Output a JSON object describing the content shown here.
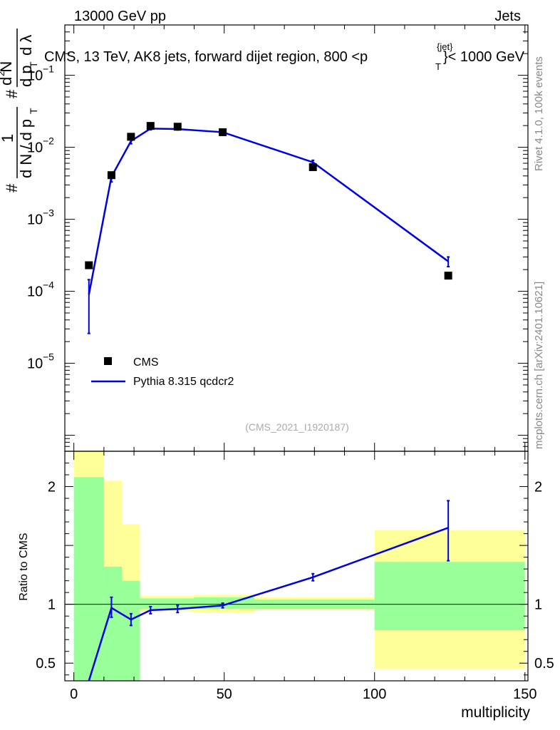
{
  "header": {
    "left": "13000 GeV pp",
    "right": "Jets"
  },
  "side_labels": {
    "rivet": "Rivet 4.1.0,  100k events",
    "mcplots": "mcplots.cern.ch [arXiv:2401.10621]"
  },
  "colors": {
    "mc": "#0000e6",
    "band_inner": "#99ff99",
    "band_outer": "#ffff99",
    "data": "#000000"
  },
  "chart_data": [
    {
      "type": "scatter",
      "panel": "main",
      "title": "CMS, 13 TeV, AK8 jets, forward dijet region, 800 <p_T^{jet}< 1000 GeV",
      "title_parts": {
        "prefix": "CMS, 13 TeV, AK8 jets, forward dijet region, 800 <p",
        "sup": "{jet}",
        "sub": "T",
        "suffix": "}< 1000 GeV"
      },
      "ylabel": "1/(dN/dp_T) d²N/(dp_T dλ)",
      "ylabel_parts": {
        "one": "1",
        "hash": "#",
        "denom": "d N / d p",
        "denom_sub": "T",
        "num": "d N",
        "num_sup": "2",
        "frac_den": "d p",
        "frac_den_sub": "T",
        "lambda": "d λ"
      },
      "yscale": "log",
      "xlim": [
        -3,
        151
      ],
      "ylim": [
        6e-07,
        0.5
      ],
      "yticks": [
        {
          "value": 0.1,
          "base": "10",
          "exp": "−1"
        },
        {
          "value": 0.01,
          "base": "10",
          "exp": "−2"
        },
        {
          "value": 0.001,
          "base": "10",
          "exp": "−3"
        },
        {
          "value": 0.0001,
          "base": "10",
          "exp": "−4"
        },
        {
          "value": 1e-05,
          "base": "10",
          "exp": "−5"
        }
      ],
      "legend": [
        {
          "label": "CMS",
          "marker": "square"
        },
        {
          "label": "Pythia 8.315 qcdcr2",
          "marker": "line"
        }
      ],
      "watermark": "(CMS_2021_I1920187)",
      "series": [
        {
          "name": "CMS",
          "x": [
            5,
            12.5,
            19,
            25.5,
            34.5,
            49.5,
            79.5,
            124.5
          ],
          "y": [
            0.00023,
            0.0041,
            0.014,
            0.0198,
            0.0193,
            0.0162,
            0.0053,
            0.000165
          ]
        },
        {
          "name": "Pythia 8.315 qcdcr2",
          "x": [
            5,
            12.5,
            19,
            25.5,
            34.5,
            49.5,
            79.5,
            124.5
          ],
          "y": [
            9e-05,
            0.0039,
            0.0122,
            0.0182,
            0.0179,
            0.0162,
            0.0062,
            0.00026
          ],
          "err_low": [
            2.6e-05,
            0.0033,
            0.0112,
            0.0175,
            0.0174,
            0.0157,
            0.0059,
            0.00022
          ],
          "err_high": [
            0.000145,
            0.0045,
            0.0132,
            0.0189,
            0.0184,
            0.0167,
            0.0066,
            0.0003
          ]
        }
      ]
    },
    {
      "type": "line",
      "panel": "ratio",
      "ylabel": "Ratio to CMS",
      "xlabel": "multiplicity",
      "xlim": [
        -3,
        151
      ],
      "ylim": [
        0.35,
        2.3
      ],
      "xticks": [
        0,
        50,
        100,
        150
      ],
      "xtick_labels": [
        "0",
        "50",
        "100",
        "150"
      ],
      "yticks": [
        0.5,
        1,
        2
      ],
      "ytick_labels": [
        "0.5",
        "1",
        "2"
      ],
      "bands": {
        "edges": [
          0,
          10,
          16,
          22,
          40,
          60,
          100,
          150
        ],
        "inner_low": [
          0.3,
          0.3,
          0.3,
          0.96,
          0.96,
          0.96,
          0.78
        ],
        "inner_high": [
          2.08,
          1.32,
          1.2,
          1.05,
          1.06,
          1.04,
          1.36
        ],
        "outer_low": [
          0.3,
          0.3,
          0.3,
          0.94,
          0.93,
          0.95,
          0.45
        ],
        "outer_high": [
          2.3,
          2.05,
          1.68,
          1.07,
          1.08,
          1.06,
          1.63
        ]
      },
      "series": [
        {
          "name": "Pythia 8.315 qcdcr2",
          "x": [
            5,
            12.5,
            19,
            25.5,
            34.5,
            49.5,
            79.5,
            124.5
          ],
          "y": [
            0.3,
            0.97,
            0.87,
            0.95,
            0.96,
            0.99,
            1.23,
            1.65
          ],
          "err_low": [
            0.3,
            0.89,
            0.82,
            0.92,
            0.93,
            0.97,
            1.2,
            1.37
          ],
          "err_high": [
            0.3,
            1.06,
            0.92,
            0.98,
            0.99,
            1.01,
            1.26,
            1.88
          ]
        }
      ]
    }
  ]
}
